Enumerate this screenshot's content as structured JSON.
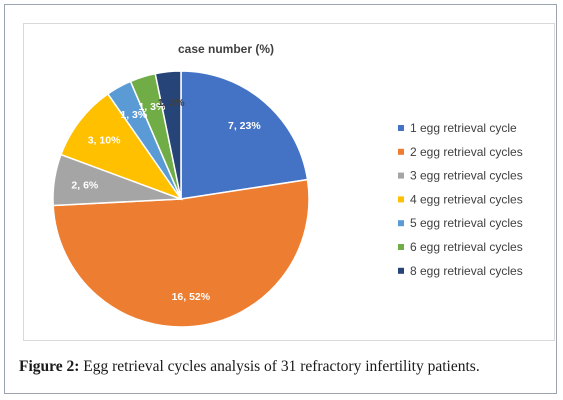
{
  "chart_data": {
    "type": "pie",
    "title": "case number (%)",
    "categories": [
      "1 egg retrieval cycle",
      "2 egg retrieval cycles",
      "3 egg retrieval cycles",
      "4 egg retrieval cycles",
      "5 egg retrieval cycles",
      "6 egg retrieval cycles",
      "8 egg retrieval cycles"
    ],
    "values": [
      7,
      16,
      2,
      3,
      1,
      1,
      1
    ],
    "data_labels": [
      "7, 23%",
      "16, 52%",
      "2, 6%",
      "3, 10%",
      "1, 3%",
      "1, 3%",
      "1, 3%"
    ],
    "colors": [
      "#4472C4",
      "#ED7D31",
      "#A5A5A5",
      "#FFC000",
      "#5B9BD5",
      "#70AD47",
      "#264478"
    ],
    "label_colors": [
      "#ffffff",
      "#ffffff",
      "#ffffff",
      "#ffffff",
      "#ffffff",
      "#ffffff",
      "#404040"
    ],
    "legend_position": "right"
  },
  "caption": {
    "figure_label": "Figure 2:",
    "text": " Egg retrieval cycles analysis of 31 refractory infertility patients."
  }
}
